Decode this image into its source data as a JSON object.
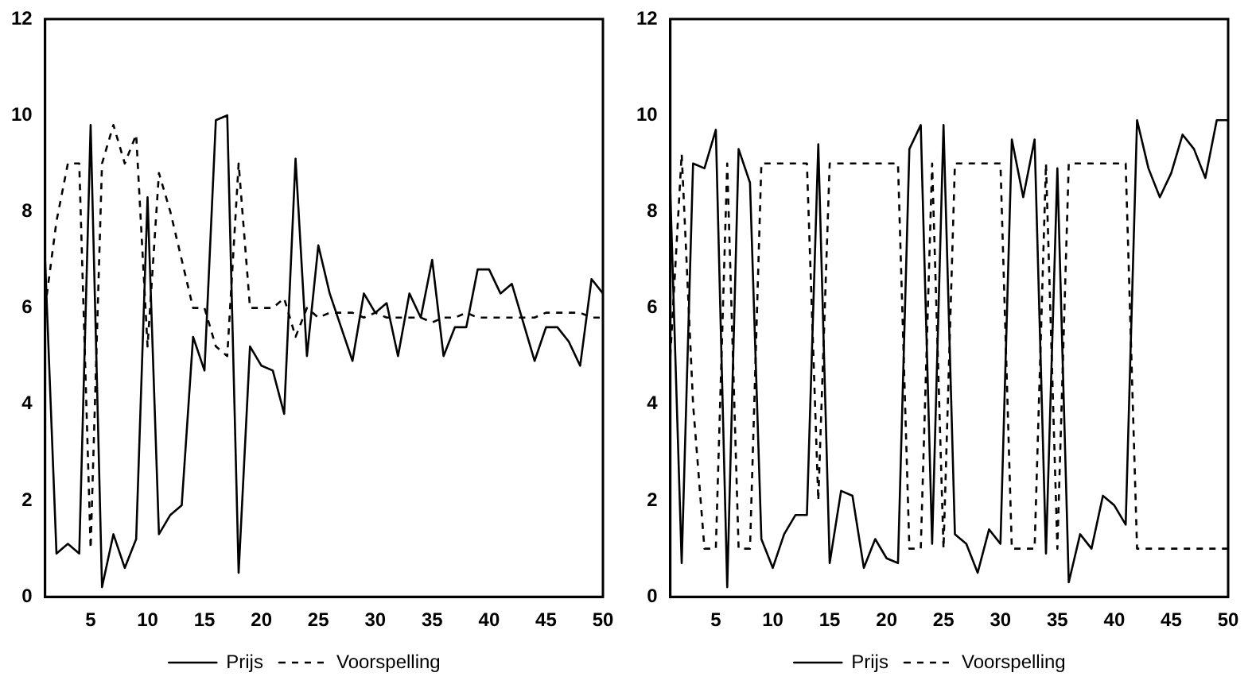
{
  "chart_data": [
    {
      "type": "line",
      "x": [
        1,
        2,
        3,
        4,
        5,
        6,
        7,
        8,
        9,
        10,
        11,
        12,
        13,
        14,
        15,
        16,
        17,
        18,
        19,
        20,
        21,
        22,
        23,
        24,
        25,
        26,
        27,
        28,
        29,
        30,
        31,
        32,
        33,
        34,
        35,
        36,
        37,
        38,
        39,
        40,
        41,
        42,
        43,
        44,
        45,
        46,
        47,
        48,
        49,
        50
      ],
      "series": [
        {
          "name": "Prijs",
          "color": "#000000",
          "line_style": "solid",
          "values": [
            7.0,
            0.9,
            1.1,
            0.9,
            9.8,
            0.2,
            1.3,
            0.6,
            1.2,
            8.3,
            1.3,
            1.7,
            1.9,
            5.4,
            4.7,
            9.9,
            10.0,
            0.5,
            5.2,
            4.8,
            4.7,
            3.8,
            9.1,
            5.0,
            7.3,
            6.3,
            5.6,
            4.9,
            6.3,
            5.9,
            6.1,
            5.0,
            6.3,
            5.8,
            7.0,
            5.0,
            5.6,
            5.6,
            6.8,
            6.8,
            6.3,
            6.5,
            5.7,
            4.9,
            5.6,
            5.6,
            5.3,
            4.8,
            6.6,
            6.3
          ]
        },
        {
          "name": "Voorspelling",
          "color": "#000000",
          "line_style": "dashed",
          "values": [
            6.0,
            7.8,
            9.0,
            9.0,
            1.0,
            9.0,
            9.8,
            9.0,
            9.6,
            5.2,
            8.8,
            8.0,
            7.0,
            6.0,
            6.0,
            5.2,
            5.0,
            9.0,
            6.0,
            6.0,
            6.0,
            6.2,
            5.4,
            6.0,
            5.8,
            5.9,
            5.9,
            5.9,
            5.8,
            5.9,
            5.8,
            5.8,
            5.8,
            5.8,
            5.7,
            5.8,
            5.8,
            5.9,
            5.8,
            5.8,
            5.8,
            5.8,
            5.8,
            5.8,
            5.9,
            5.9,
            5.9,
            5.9,
            5.8,
            5.8
          ]
        }
      ],
      "xlim": [
        1,
        50
      ],
      "xticks": [
        5,
        10,
        15,
        20,
        25,
        30,
        35,
        40,
        45,
        50
      ],
      "ylim": [
        0,
        12
      ],
      "yticks": [
        0,
        2,
        4,
        6,
        8,
        10,
        12
      ],
      "grid": false,
      "legend": "bottom",
      "marker": "none"
    },
    {
      "type": "line",
      "x": [
        1,
        2,
        3,
        4,
        5,
        6,
        7,
        8,
        9,
        10,
        11,
        12,
        13,
        14,
        15,
        16,
        17,
        18,
        19,
        20,
        21,
        22,
        23,
        24,
        25,
        26,
        27,
        28,
        29,
        30,
        31,
        32,
        33,
        34,
        35,
        36,
        37,
        38,
        39,
        40,
        41,
        42,
        43,
        44,
        45,
        46,
        47,
        48,
        49,
        50
      ],
      "series": [
        {
          "name": "Prijs",
          "color": "#000000",
          "line_style": "solid",
          "values": [
            8.4,
            0.7,
            9.0,
            8.9,
            9.7,
            0.2,
            9.3,
            8.6,
            1.2,
            0.6,
            1.3,
            1.7,
            1.7,
            9.4,
            0.7,
            2.2,
            2.1,
            0.6,
            1.2,
            0.8,
            0.7,
            9.3,
            9.8,
            1.1,
            9.8,
            1.3,
            1.1,
            0.5,
            1.4,
            1.1,
            9.5,
            8.3,
            9.5,
            0.9,
            8.9,
            0.3,
            1.3,
            1.0,
            2.1,
            1.9,
            1.5,
            9.9,
            8.9,
            8.3,
            8.8,
            9.6,
            9.3,
            8.7,
            9.9,
            9.9
          ]
        },
        {
          "name": "Voorspelling",
          "color": "#000000",
          "line_style": "dashed",
          "values": [
            5.0,
            9.2,
            4.0,
            1.0,
            1.0,
            9.0,
            1.0,
            1.0,
            9.0,
            9.0,
            9.0,
            9.0,
            9.0,
            2.0,
            9.0,
            9.0,
            9.0,
            9.0,
            9.0,
            9.0,
            9.0,
            1.0,
            1.0,
            9.0,
            1.0,
            9.0,
            9.0,
            9.0,
            9.0,
            9.0,
            1.0,
            1.0,
            1.0,
            9.0,
            1.0,
            9.0,
            9.0,
            9.0,
            9.0,
            9.0,
            9.0,
            1.0,
            1.0,
            1.0,
            1.0,
            1.0,
            1.0,
            1.0,
            1.0,
            1.0
          ]
        }
      ],
      "xlim": [
        1,
        50
      ],
      "xticks": [
        5,
        10,
        15,
        20,
        25,
        30,
        35,
        40,
        45,
        50
      ],
      "ylim": [
        0,
        12
      ],
      "yticks": [
        0,
        2,
        4,
        6,
        8,
        10,
        12
      ],
      "grid": false,
      "legend": "bottom",
      "marker": "none"
    }
  ]
}
